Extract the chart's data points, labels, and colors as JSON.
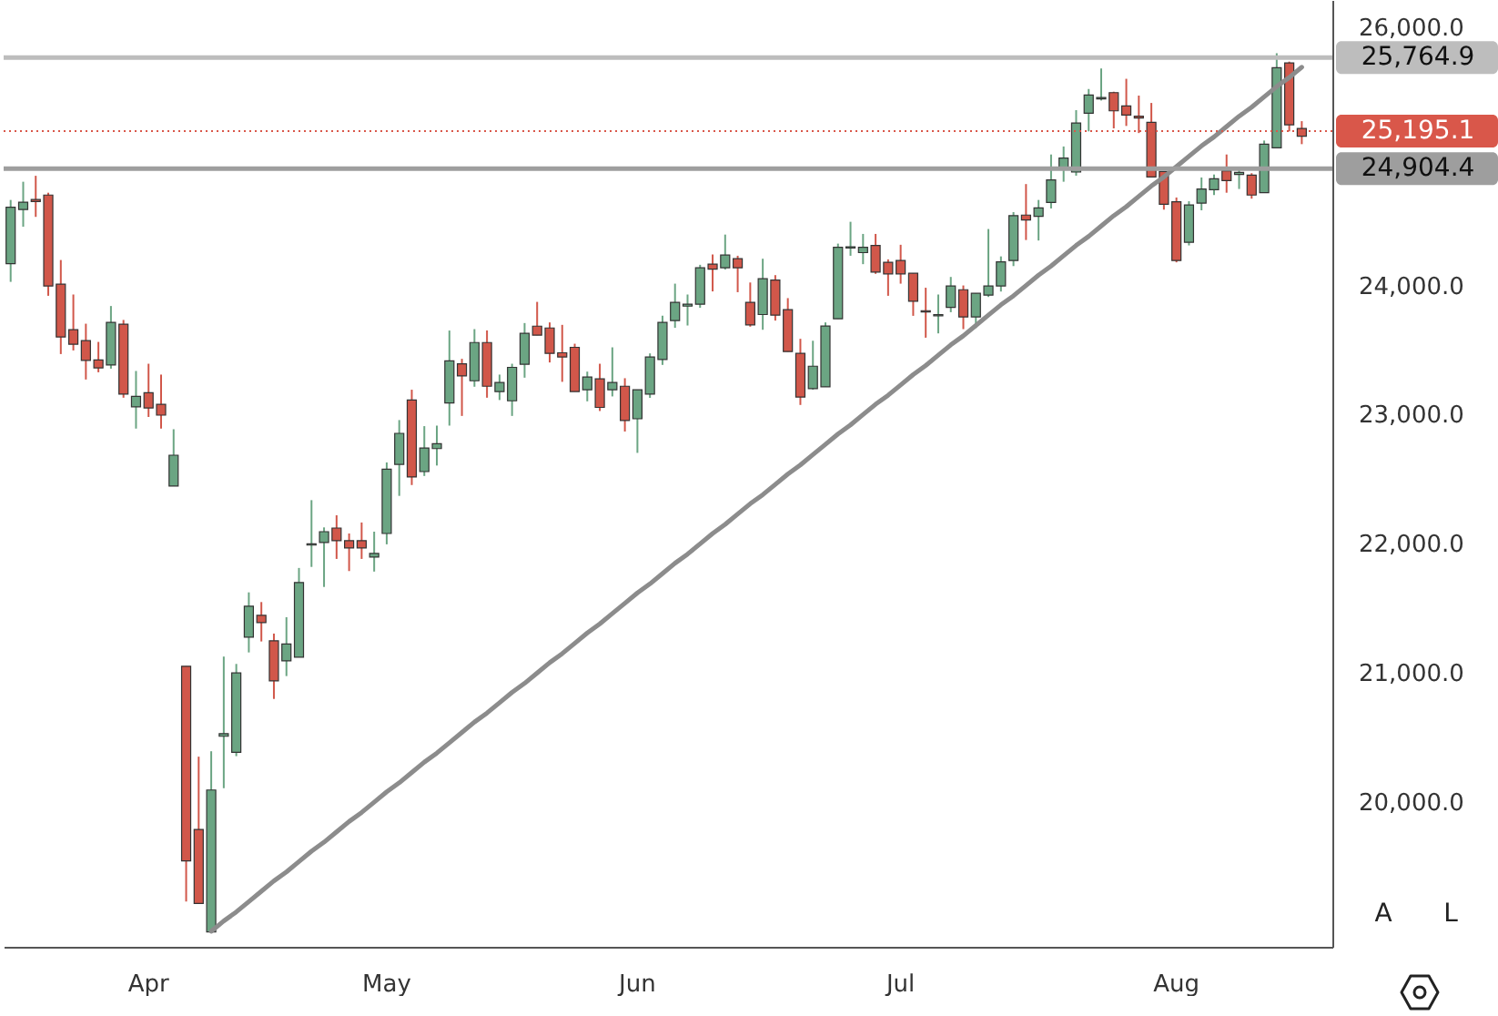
{
  "chart_data": {
    "type": "candlestick",
    "categories": [
      null,
      null,
      null,
      null,
      null,
      null,
      null,
      null,
      null,
      null,
      null,
      "Apr",
      null,
      null,
      null,
      null,
      null,
      null,
      null,
      null,
      null,
      null,
      null,
      null,
      null,
      null,
      null,
      null,
      null,
      null,
      "May",
      null,
      null,
      null,
      null,
      null,
      null,
      null,
      null,
      null,
      null,
      null,
      null,
      null,
      null,
      null,
      null,
      null,
      null,
      null,
      "Jun",
      null,
      null,
      null,
      null,
      null,
      null,
      null,
      null,
      null,
      null,
      null,
      null,
      null,
      null,
      null,
      null,
      null,
      null,
      null,
      null,
      "Jul",
      null,
      null,
      null,
      null,
      null,
      null,
      null,
      null,
      null,
      null,
      null,
      null,
      null,
      null,
      null,
      null,
      null,
      null,
      null,
      null,
      null,
      "Aug",
      null,
      null,
      null,
      null,
      null,
      null,
      null,
      null,
      null,
      null
    ],
    "ohlc": [
      [
        24169,
        24662,
        24028,
        24606
      ],
      [
        24588,
        24803,
        24455,
        24645
      ],
      [
        24665,
        24849,
        24531,
        24650
      ],
      [
        24700,
        24718,
        23920,
        23996
      ],
      [
        24010,
        24197,
        23469,
        23601
      ],
      [
        23658,
        23930,
        23497,
        23545
      ],
      [
        23573,
        23704,
        23272,
        23420
      ],
      [
        23423,
        23563,
        23328,
        23362
      ],
      [
        23384,
        23841,
        23356,
        23714
      ],
      [
        23700,
        23733,
        23131,
        23159
      ],
      [
        23061,
        23338,
        22892,
        23141
      ],
      [
        23169,
        23394,
        22982,
        23052
      ],
      [
        23080,
        23310,
        22892,
        22996
      ],
      [
        22447,
        22887,
        22447,
        22686
      ],
      [
        21052,
        21052,
        19230,
        19545
      ],
      [
        19789,
        20352,
        19215,
        19215
      ],
      [
        18996,
        20394,
        18996,
        20094
      ],
      [
        20510,
        21127,
        20108,
        20530
      ],
      [
        20385,
        21070,
        20356,
        21000
      ],
      [
        21277,
        21624,
        21159,
        21517
      ],
      [
        21446,
        21549,
        21244,
        21390
      ],
      [
        21249,
        21305,
        20799,
        20939
      ],
      [
        21094,
        21432,
        20976,
        21225
      ],
      [
        21122,
        21813,
        21122,
        21700
      ],
      [
        21990,
        22338,
        21821,
        22000
      ],
      [
        22010,
        22127,
        21666,
        22094
      ],
      [
        22122,
        22221,
        21883,
        22024
      ],
      [
        22024,
        22080,
        21789,
        21968
      ],
      [
        22024,
        22165,
        21883,
        21968
      ],
      [
        21897,
        22094,
        21785,
        21925
      ],
      [
        22080,
        22630,
        21996,
        22578
      ],
      [
        22615,
        22958,
        22371,
        22855
      ],
      [
        23113,
        23193,
        22455,
        22517
      ],
      [
        22559,
        22911,
        22525,
        22742
      ],
      [
        22737,
        22915,
        22606,
        22775
      ],
      [
        23090,
        23651,
        22915,
        23417
      ],
      [
        23394,
        23432,
        22990,
        23300
      ],
      [
        23262,
        23662,
        23216,
        23558
      ],
      [
        23558,
        23652,
        23131,
        23220
      ],
      [
        23178,
        23310,
        23113,
        23249
      ],
      [
        23107,
        23394,
        22990,
        23366
      ],
      [
        23390,
        23709,
        23286,
        23629
      ],
      [
        23685,
        23873,
        23615,
        23615
      ],
      [
        23671,
        23714,
        23404,
        23474
      ],
      [
        23479,
        23695,
        23254,
        23446
      ],
      [
        23521,
        23549,
        23179,
        23179
      ],
      [
        23193,
        23333,
        23103,
        23291
      ],
      [
        23277,
        23394,
        23028,
        23056
      ],
      [
        23193,
        23521,
        23141,
        23249
      ],
      [
        23220,
        23282,
        22869,
        22954
      ],
      [
        22968,
        23193,
        22704,
        23193
      ],
      [
        23159,
        23474,
        23130,
        23446
      ],
      [
        23427,
        23766,
        23385,
        23714
      ],
      [
        23728,
        24014,
        23672,
        23869
      ],
      [
        23840,
        23930,
        23690,
        23855
      ],
      [
        23855,
        24160,
        23827,
        24137
      ],
      [
        24165,
        24240,
        23954,
        24127
      ],
      [
        24137,
        24394,
        24123,
        24235
      ],
      [
        24207,
        24230,
        23948,
        24137
      ],
      [
        23869,
        24023,
        23681,
        23695
      ],
      [
        23775,
        24207,
        23657,
        24052
      ],
      [
        24042,
        24080,
        23728,
        23770
      ],
      [
        23813,
        23902,
        23488,
        23488
      ],
      [
        23474,
        23587,
        23075,
        23136
      ],
      [
        23202,
        23572,
        23193,
        23375
      ],
      [
        23216,
        23714,
        23216,
        23686
      ],
      [
        23742,
        24324,
        23742,
        24296
      ],
      [
        24290,
        24493,
        24230,
        24300
      ],
      [
        24254,
        24399,
        24165,
        24296
      ],
      [
        24310,
        24399,
        24090,
        24104
      ],
      [
        24179,
        24202,
        23920,
        24090
      ],
      [
        24193,
        24315,
        24014,
        24090
      ],
      [
        24094,
        24094,
        23765,
        23878
      ],
      [
        23805,
        23982,
        23596,
        23795
      ],
      [
        23765,
        23930,
        23629,
        23775
      ],
      [
        23831,
        24066,
        23793,
        23996
      ],
      [
        23967,
        24000,
        23662,
        23756
      ],
      [
        23756,
        23939,
        23671,
        23939
      ],
      [
        23925,
        24437,
        23911,
        23996
      ],
      [
        23996,
        24225,
        23953,
        24183
      ],
      [
        24193,
        24568,
        24150,
        24540
      ],
      [
        24545,
        24785,
        24352,
        24507
      ],
      [
        24535,
        24662,
        24348,
        24601
      ],
      [
        24643,
        25014,
        24596,
        24817
      ],
      [
        24911,
        25076,
        24803,
        24986
      ],
      [
        24878,
        25357,
        24850,
        25258
      ],
      [
        25334,
        25521,
        25193,
        25475
      ],
      [
        25445,
        25680,
        25432,
        25455
      ],
      [
        25493,
        25500,
        25216,
        25352
      ],
      [
        25390,
        25600,
        25235,
        25320
      ],
      [
        25310,
        25470,
        25180,
        25296
      ],
      [
        25263,
        25413,
        24840,
        24840
      ],
      [
        24883,
        24883,
        24587,
        24629
      ],
      [
        24648,
        24681,
        24179,
        24193
      ],
      [
        24334,
        24652,
        24310,
        24624
      ],
      [
        24638,
        24836,
        24582,
        24747
      ],
      [
        24742,
        24859,
        24700,
        24826
      ],
      [
        24888,
        25014,
        24718,
        24812
      ],
      [
        24860,
        24906,
        24747,
        24875
      ],
      [
        24854,
        24869,
        24672,
        24700
      ],
      [
        24718,
        25122,
        24718,
        25094
      ],
      [
        25066,
        25798,
        25066,
        25686
      ],
      [
        25723,
        25733,
        25193,
        25244
      ],
      [
        25216,
        25272,
        25094,
        25155
      ]
    ],
    "colors": [
      "#6ba583",
      "#6ba583",
      "#d1574a",
      "#d1574a",
      "#d1574a",
      "#d1574a",
      "#d1574a",
      "#d1574a",
      "#6ba583",
      "#d1574a",
      "#6ba583",
      "#d1574a",
      "#d1574a",
      "#6ba583",
      "#d1574a",
      "#d1574a",
      "#6ba583",
      "#6ba583",
      "#6ba583",
      "#6ba583",
      "#d1574a",
      "#d1574a",
      "#6ba583",
      "#6ba583",
      "#6ba583",
      "#6ba583",
      "#d1574a",
      "#d1574a",
      "#d1574a",
      "#6ba583",
      "#6ba583",
      "#6ba583",
      "#d1574a",
      "#6ba583",
      "#6ba583",
      "#6ba583",
      "#d1574a",
      "#6ba583",
      "#d1574a",
      "#6ba583",
      "#6ba583",
      "#6ba583",
      "#d1574a",
      "#d1574a",
      "#d1574a",
      "#d1574a",
      "#6ba583",
      "#d1574a",
      "#6ba583",
      "#d1574a",
      "#6ba583",
      "#6ba583",
      "#6ba583",
      "#6ba583",
      "#6ba583",
      "#6ba583",
      "#d1574a",
      "#6ba583",
      "#d1574a",
      "#d1574a",
      "#6ba583",
      "#d1574a",
      "#d1574a",
      "#d1574a",
      "#6ba583",
      "#6ba583",
      "#6ba583",
      "#6ba583",
      "#6ba583",
      "#d1574a",
      "#d1574a",
      "#d1574a",
      "#d1574a",
      "#d1574a",
      "#6ba583",
      "#6ba583",
      "#d1574a",
      "#6ba583",
      "#6ba583",
      "#6ba583",
      "#6ba583",
      "#d1574a",
      "#6ba583",
      "#6ba583",
      "#6ba583",
      "#6ba583",
      "#6ba583",
      "#6ba583",
      "#d1574a",
      "#d1574a",
      "#d1574a",
      "#d1574a",
      "#d1574a",
      "#d1574a",
      "#6ba583",
      "#6ba583",
      "#6ba583",
      "#d1574a",
      "#6ba583",
      "#d1574a",
      "#6ba583",
      "#6ba583",
      "#d1574a",
      "#d1574a"
    ],
    "ylim": [
      18880,
      26210
    ],
    "yticks": [
      {
        "value": 20000,
        "label": "20,000.0"
      },
      {
        "value": 21000,
        "label": "21,000.0"
      },
      {
        "value": 22000,
        "label": "22,000.0"
      },
      {
        "value": 23000,
        "label": "23,000.0"
      },
      {
        "value": 24000,
        "label": "24,000.0"
      },
      {
        "value": 26000,
        "label": "26,000.0"
      }
    ],
    "series": [
      {
        "type": "line",
        "color": "#8c8c8c",
        "values": [
          null,
          null,
          null,
          null,
          null,
          null,
          null,
          null,
          null,
          null,
          null,
          null,
          null,
          null,
          null,
          null,
          19000,
          19080,
          19150,
          19230,
          19310,
          19390,
          19460,
          19540,
          19620,
          19690,
          19770,
          19850,
          19920,
          20000,
          20080,
          20150,
          20230,
          20310,
          20380,
          20460,
          20540,
          20620,
          20690,
          20770,
          20850,
          20920,
          21000,
          21080,
          21150,
          21230,
          21310,
          21380,
          21460,
          21540,
          21620,
          21690,
          21770,
          21850,
          21920,
          22000,
          22080,
          22150,
          22230,
          22310,
          22380,
          22460,
          22540,
          22610,
          22690,
          22770,
          22850,
          22920,
          23000,
          23080,
          23150,
          23230,
          23310,
          23380,
          23460,
          23540,
          23610,
          23690,
          23770,
          23850,
          23920,
          24000,
          24080,
          24150,
          24230,
          24310,
          24380,
          24460,
          24540,
          24610,
          24690,
          24770,
          24840,
          24920,
          25000,
          25080,
          25150,
          25230,
          25310,
          25380,
          25460,
          25540,
          25610,
          25690
        ]
      }
    ],
    "ref_lines": [
      {
        "axis": "y",
        "value": 25764.9,
        "label": "25,764.9",
        "color": "#bdbdbd"
      },
      {
        "axis": "y",
        "value": 25195.1,
        "label": "25,195.1",
        "color": "#d9574a",
        "line_style": "dotted"
      },
      {
        "axis": "y",
        "value": 24904.4,
        "label": "24,904.4",
        "color": "#9e9e9e"
      }
    ],
    "annotations": [
      "A",
      "L"
    ]
  }
}
